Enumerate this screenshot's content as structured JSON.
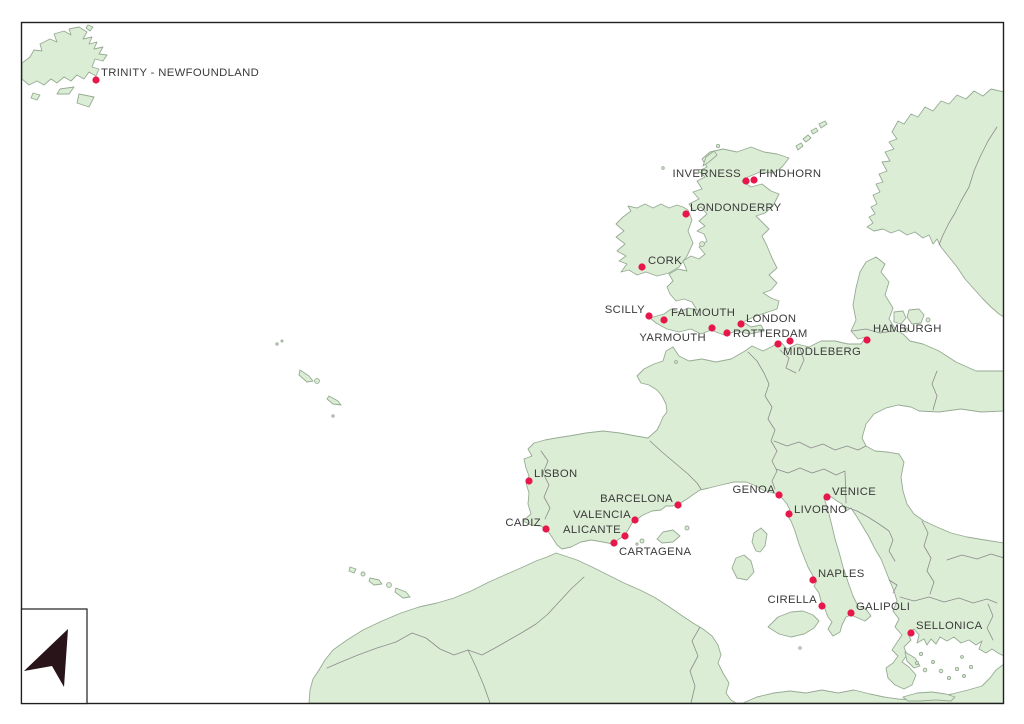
{
  "map": {
    "colors": {
      "sea": "#ffffff",
      "land": "#dcedd6",
      "coast": "#96ab93",
      "border": "#8b8b8b",
      "frame": "#1f1f1f",
      "marker": "#e8174b",
      "label": "#3a3a3a",
      "arrow": "#281419"
    },
    "marker_radius": 3.6,
    "cities": [
      {
        "name": "TRINITY - NEWFOUNDLAND",
        "dot": [
          96,
          80
        ],
        "label": [
          101,
          76
        ],
        "anchor": "start"
      },
      {
        "name": "INVERNESS",
        "dot": [
          746,
          181
        ],
        "label": [
          741,
          177
        ],
        "anchor": "end"
      },
      {
        "name": "FINDHORN",
        "dot": [
          754,
          180
        ],
        "label": [
          759,
          177
        ],
        "anchor": "start"
      },
      {
        "name": "LONDONDERRY",
        "dot": [
          686,
          214
        ],
        "label": [
          690,
          211
        ],
        "anchor": "start"
      },
      {
        "name": "CORK",
        "dot": [
          642,
          267
        ],
        "label": [
          648,
          264
        ],
        "anchor": "start"
      },
      {
        "name": "SCILLY",
        "dot": [
          649,
          316
        ],
        "label": [
          645,
          313
        ],
        "anchor": "end"
      },
      {
        "name": "FALMOUTH",
        "dot": [
          664,
          320
        ],
        "label": [
          671,
          316
        ],
        "anchor": "start"
      },
      {
        "name": "YARMOUTH",
        "dot": [
          712,
          328
        ],
        "label": [
          706,
          341
        ],
        "anchor": "end"
      },
      {
        "name": "LONDON",
        "dot": [
          741,
          324
        ],
        "label": [
          746,
          322
        ],
        "anchor": "start"
      },
      {
        "name": "ROTTERDAM",
        "dot": [
          790,
          341
        ],
        "label": [
          733,
          337
        ],
        "anchor": "start"
      },
      {
        "name": "MIDDLEBERG",
        "dot": [
          778,
          344
        ],
        "label": [
          783,
          355
        ],
        "anchor": "start"
      },
      {
        "name": "HAMBURGH",
        "dot": [
          867,
          340
        ],
        "label": [
          873,
          332
        ],
        "anchor": "start"
      },
      {
        "name": "LISBON",
        "dot": [
          529,
          481
        ],
        "label": [
          534,
          477
        ],
        "anchor": "start"
      },
      {
        "name": "CADIZ",
        "dot": [
          546,
          529
        ],
        "label": [
          541,
          526
        ],
        "anchor": "end"
      },
      {
        "name": "BARCELONA",
        "dot": [
          678,
          505
        ],
        "label": [
          673,
          502
        ],
        "anchor": "end"
      },
      {
        "name": "VALENCIA",
        "dot": [
          635,
          520
        ],
        "label": [
          631,
          518
        ],
        "anchor": "end"
      },
      {
        "name": "ALICANTE",
        "dot": [
          625,
          536
        ],
        "label": [
          621,
          533
        ],
        "anchor": "end"
      },
      {
        "name": "CARTAGENA",
        "dot": [
          614,
          543
        ],
        "label": [
          619,
          555
        ],
        "anchor": "start"
      },
      {
        "name": "GENOA",
        "dot": [
          779,
          495
        ],
        "label": [
          775,
          493
        ],
        "anchor": "end"
      },
      {
        "name": "VENICE",
        "dot": [
          827,
          497
        ],
        "label": [
          832,
          495
        ],
        "anchor": "start"
      },
      {
        "name": "LIVORNO",
        "dot": [
          789,
          514
        ],
        "label": [
          794,
          513
        ],
        "anchor": "start"
      },
      {
        "name": "NAPLES",
        "dot": [
          813,
          580
        ],
        "label": [
          818,
          577
        ],
        "anchor": "start"
      },
      {
        "name": "CIRELLA",
        "dot": [
          822,
          606
        ],
        "label": [
          817,
          603
        ],
        "anchor": "end"
      },
      {
        "name": "GALIPOLI",
        "dot": [
          851,
          613
        ],
        "label": [
          856,
          610
        ],
        "anchor": "start"
      },
      {
        "name": "SELLONICA",
        "dot": [
          911,
          633
        ],
        "label": [
          916,
          629
        ],
        "anchor": "start"
      }
    ],
    "extra_markers": [
      [
        727,
        333
      ]
    ]
  }
}
